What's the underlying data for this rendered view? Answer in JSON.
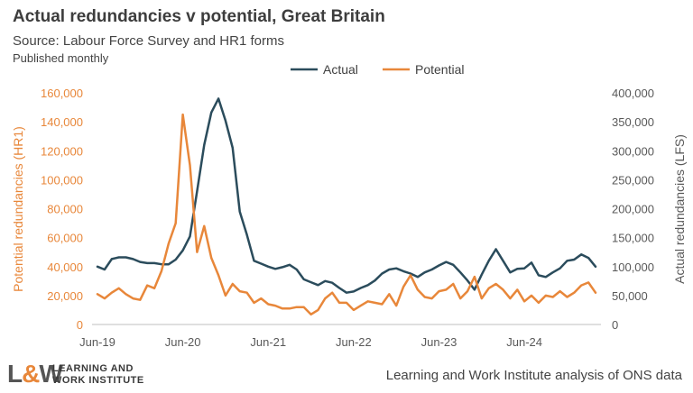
{
  "title": "Actual redundancies v potential, Great Britain",
  "subtitle": "Source: Labour Force Survey and HR1 forms",
  "note": "Published monthly",
  "footer": "Learning and Work Institute analysis of ONS data",
  "logo": {
    "mark": "L&W",
    "line1": "LEARNING AND",
    "line2": "WORK INSTITUTE"
  },
  "colors": {
    "actual": "#2b4c5c",
    "potential": "#e8873a",
    "axis": "#bfbfbf",
    "text": "#595959"
  },
  "chart_data": {
    "type": "line",
    "title": "Actual redundancies v potential, Great Britain",
    "legend_position": "top",
    "grid": false,
    "xlabel": "",
    "x_tick_labels": [
      "Jun-19",
      "Jun-20",
      "Jun-21",
      "Jun-22",
      "Jun-23",
      "Jun-24"
    ],
    "x_tick_index": [
      0,
      12,
      24,
      36,
      48,
      60
    ],
    "ylabel_left": "Potential redundancies (HR1)",
    "ylabel_right": "Actual redundancies (LFS)",
    "ylim_left": [
      0,
      160000
    ],
    "ylim_right": [
      0,
      400000
    ],
    "yticks_left": [
      "0",
      "20,000",
      "40,000",
      "60,000",
      "80,000",
      "100,000",
      "120,000",
      "140,000",
      "160,000"
    ],
    "yticks_right": [
      "0",
      "50,000",
      "100,000",
      "150,000",
      "200,000",
      "250,000",
      "300,000",
      "350,000",
      "400,000"
    ],
    "series": [
      {
        "name": "Actual",
        "axis": "right",
        "values": [
          100000,
          95000,
          113000,
          116000,
          116000,
          113000,
          108000,
          106000,
          106000,
          104000,
          104000,
          112000,
          128000,
          152000,
          230000,
          310000,
          366000,
          390000,
          352000,
          305000,
          195000,
          155000,
          110000,
          105000,
          100000,
          96000,
          99000,
          103000,
          95000,
          78000,
          73000,
          68000,
          75000,
          72000,
          63000,
          55000,
          57000,
          63000,
          68000,
          76000,
          88000,
          95000,
          97000,
          92000,
          88000,
          82000,
          90000,
          95000,
          102000,
          108000,
          103000,
          90000,
          76000,
          60000,
          86000,
          110000,
          130000,
          110000,
          90000,
          96000,
          97000,
          107000,
          85000,
          82000,
          90000,
          97000,
          110000,
          112000,
          121000,
          115000,
          100000
        ]
      },
      {
        "name": "Potential",
        "axis": "left",
        "values": [
          21000,
          18000,
          22000,
          25000,
          21000,
          18000,
          17000,
          27000,
          25000,
          37000,
          56000,
          70000,
          145000,
          110000,
          50000,
          68000,
          46000,
          34000,
          20000,
          28000,
          23000,
          22000,
          15000,
          18000,
          14000,
          13000,
          11000,
          11000,
          12000,
          12000,
          7000,
          10000,
          18000,
          22000,
          15000,
          15000,
          10000,
          13000,
          16000,
          15000,
          14000,
          21000,
          13000,
          26000,
          34000,
          24000,
          19000,
          18000,
          23000,
          24000,
          28000,
          18000,
          23000,
          33000,
          18000,
          25000,
          28000,
          24000,
          18000,
          24000,
          16000,
          20000,
          15000,
          20000,
          19000,
          23000,
          19000,
          22000,
          27000,
          29000,
          22000
        ]
      }
    ]
  }
}
